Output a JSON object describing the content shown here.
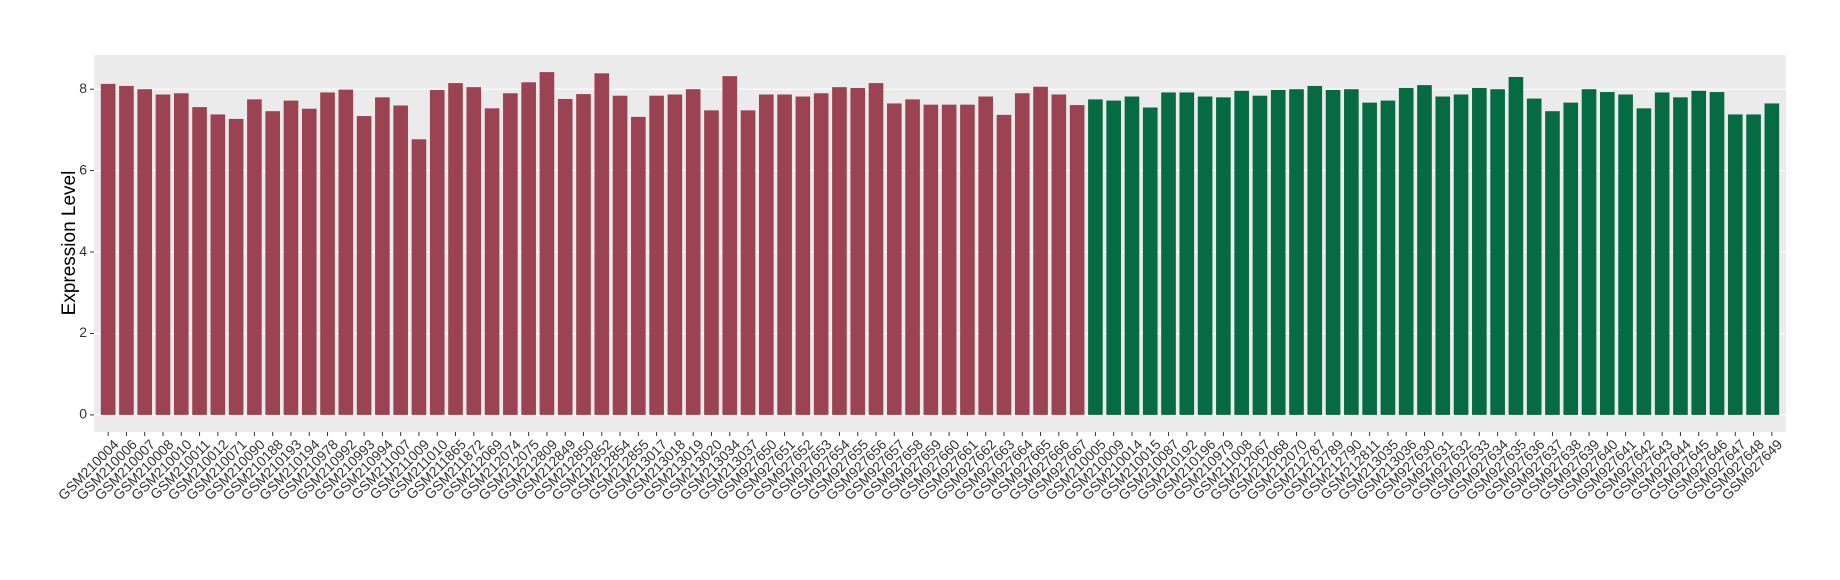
{
  "chart_data": {
    "type": "bar",
    "ylabel": "Expression Level",
    "categories": [
      "GSM210004",
      "GSM210006",
      "GSM210007",
      "GSM210008",
      "GSM210010",
      "GSM210011",
      "GSM210012",
      "GSM210071",
      "GSM210090",
      "GSM210188",
      "GSM210193",
      "GSM210194",
      "GSM210978",
      "GSM210992",
      "GSM210993",
      "GSM210994",
      "GSM211007",
      "GSM211009",
      "GSM211010",
      "GSM211865",
      "GSM211872",
      "GSM212069",
      "GSM212074",
      "GSM212075",
      "GSM212809",
      "GSM212849",
      "GSM212850",
      "GSM212852",
      "GSM212854",
      "GSM212855",
      "GSM213017",
      "GSM213018",
      "GSM213019",
      "GSM213020",
      "GSM213034",
      "GSM213037",
      "GSM927650",
      "GSM927651",
      "GSM927652",
      "GSM927653",
      "GSM927654",
      "GSM927655",
      "GSM927656",
      "GSM927657",
      "GSM927658",
      "GSM927659",
      "GSM927660",
      "GSM927661",
      "GSM927662",
      "GSM927663",
      "GSM927664",
      "GSM927665",
      "GSM927666",
      "GSM927667",
      "GSM210005",
      "GSM210009",
      "GSM210014",
      "GSM210015",
      "GSM210087",
      "GSM210192",
      "GSM210196",
      "GSM210979",
      "GSM211008",
      "GSM212067",
      "GSM212068",
      "GSM212070",
      "GSM212787",
      "GSM212789",
      "GSM212790",
      "GSM212811",
      "GSM213035",
      "GSM213036",
      "GSM927630",
      "GSM927631",
      "GSM927632",
      "GSM927633",
      "GSM927634",
      "GSM927635",
      "GSM927636",
      "GSM927637",
      "GSM927638",
      "GSM927639",
      "GSM927640",
      "GSM927641",
      "GSM927642",
      "GSM927643",
      "GSM927644",
      "GSM927645",
      "GSM927646",
      "GSM927647",
      "GSM927648",
      "GSM927649"
    ],
    "values": [
      8.13,
      8.08,
      8.0,
      7.87,
      7.9,
      7.56,
      7.38,
      7.27,
      7.75,
      7.46,
      7.72,
      7.52,
      7.92,
      7.99,
      7.34,
      7.8,
      7.6,
      6.77,
      7.98,
      8.15,
      8.05,
      7.53,
      7.9,
      8.17,
      8.42,
      7.76,
      7.88,
      8.39,
      7.84,
      7.32,
      7.84,
      7.87,
      8.0,
      7.48,
      8.32,
      7.48,
      7.87,
      7.87,
      7.82,
      7.9,
      8.05,
      8.03,
      8.15,
      7.65,
      7.75,
      7.62,
      7.62,
      7.62,
      7.82,
      7.37,
      7.9,
      8.06,
      7.87,
      7.61,
      7.75,
      7.72,
      7.82,
      7.55,
      7.92,
      7.92,
      7.82,
      7.8,
      7.96,
      7.84,
      7.98,
      8.0,
      8.08,
      7.98,
      8.0,
      7.67,
      7.72,
      8.03,
      8.1,
      7.82,
      7.87,
      8.03,
      8.0,
      8.3,
      7.77,
      7.46,
      7.67,
      8.0,
      7.93,
      7.87,
      7.53,
      7.92,
      7.8,
      7.96,
      7.93,
      7.38,
      7.38,
      7.65
    ],
    "colors": [
      "#9b4352",
      "#9b4352",
      "#9b4352",
      "#9b4352",
      "#9b4352",
      "#9b4352",
      "#9b4352",
      "#9b4352",
      "#9b4352",
      "#9b4352",
      "#9b4352",
      "#9b4352",
      "#9b4352",
      "#9b4352",
      "#9b4352",
      "#9b4352",
      "#9b4352",
      "#9b4352",
      "#9b4352",
      "#9b4352",
      "#9b4352",
      "#9b4352",
      "#9b4352",
      "#9b4352",
      "#9b4352",
      "#9b4352",
      "#9b4352",
      "#9b4352",
      "#9b4352",
      "#9b4352",
      "#9b4352",
      "#9b4352",
      "#9b4352",
      "#9b4352",
      "#9b4352",
      "#9b4352",
      "#9b4352",
      "#9b4352",
      "#9b4352",
      "#9b4352",
      "#9b4352",
      "#9b4352",
      "#9b4352",
      "#9b4352",
      "#9b4352",
      "#9b4352",
      "#9b4352",
      "#9b4352",
      "#9b4352",
      "#9b4352",
      "#9b4352",
      "#9b4352",
      "#9b4352",
      "#9b4352",
      "#066a43",
      "#066a43",
      "#066a43",
      "#066a43",
      "#066a43",
      "#066a43",
      "#066a43",
      "#066a43",
      "#066a43",
      "#066a43",
      "#066a43",
      "#066a43",
      "#066a43",
      "#066a43",
      "#066a43",
      "#066a43",
      "#066a43",
      "#066a43",
      "#066a43",
      "#066a43",
      "#066a43",
      "#066a43",
      "#066a43",
      "#066a43",
      "#066a43",
      "#066a43",
      "#066a43",
      "#066a43",
      "#066a43",
      "#066a43",
      "#066a43",
      "#066a43",
      "#066a43",
      "#066a43",
      "#066a43",
      "#066a43",
      "#066a43",
      "#066a43"
    ],
    "ylim": [
      -0.42,
      8.84
    ],
    "yticks": [
      0,
      2,
      4,
      6,
      8
    ],
    "grid": true
  }
}
